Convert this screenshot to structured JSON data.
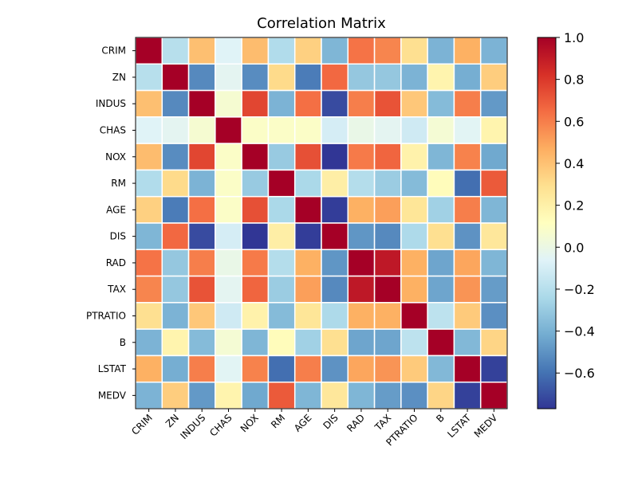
{
  "chart_data": {
    "type": "heatmap",
    "title": "Correlation Matrix",
    "labels": [
      "CRIM",
      "ZN",
      "INDUS",
      "CHAS",
      "NOX",
      "RM",
      "AGE",
      "DIS",
      "RAD",
      "TAX",
      "PTRATIO",
      "B",
      "LSTAT",
      "MEDV"
    ],
    "matrix": [
      [
        1.0,
        -0.2,
        0.41,
        -0.06,
        0.42,
        -0.22,
        0.35,
        -0.38,
        0.63,
        0.58,
        0.29,
        -0.39,
        0.46,
        -0.39
      ],
      [
        -0.2,
        1.0,
        -0.53,
        -0.04,
        -0.52,
        0.31,
        -0.57,
        0.66,
        -0.31,
        -0.31,
        -0.39,
        0.18,
        -0.41,
        0.36
      ],
      [
        0.41,
        -0.53,
        1.0,
        0.06,
        0.76,
        -0.39,
        0.64,
        -0.71,
        0.6,
        0.72,
        0.38,
        -0.36,
        0.6,
        -0.48
      ],
      [
        -0.06,
        -0.04,
        0.06,
        1.0,
        0.09,
        0.09,
        0.09,
        -0.1,
        -0.01,
        -0.04,
        -0.12,
        0.05,
        -0.05,
        0.18
      ],
      [
        0.42,
        -0.52,
        0.76,
        0.09,
        1.0,
        -0.3,
        0.73,
        -0.77,
        0.61,
        0.67,
        0.19,
        -0.38,
        0.59,
        -0.43
      ],
      [
        -0.22,
        0.31,
        -0.39,
        0.09,
        -0.3,
        1.0,
        -0.24,
        0.21,
        -0.21,
        -0.29,
        -0.36,
        0.13,
        -0.61,
        0.7
      ],
      [
        0.35,
        -0.57,
        0.64,
        0.09,
        0.73,
        -0.24,
        1.0,
        -0.75,
        0.46,
        0.51,
        0.26,
        -0.27,
        0.6,
        -0.38
      ],
      [
        -0.38,
        0.66,
        -0.71,
        -0.1,
        -0.77,
        0.21,
        -0.75,
        1.0,
        -0.49,
        -0.53,
        -0.23,
        0.29,
        -0.5,
        0.25
      ],
      [
        0.63,
        -0.31,
        0.6,
        -0.01,
        0.61,
        -0.21,
        0.46,
        -0.49,
        1.0,
        0.91,
        0.46,
        -0.44,
        0.49,
        -0.38
      ],
      [
        0.58,
        -0.31,
        0.72,
        -0.04,
        0.67,
        -0.29,
        0.51,
        -0.53,
        0.91,
        1.0,
        0.46,
        -0.44,
        0.54,
        -0.47
      ],
      [
        0.29,
        -0.39,
        0.38,
        -0.12,
        0.19,
        -0.36,
        0.26,
        -0.23,
        0.46,
        0.46,
        1.0,
        -0.18,
        0.37,
        -0.51
      ],
      [
        -0.39,
        0.18,
        -0.36,
        0.05,
        -0.38,
        0.13,
        -0.27,
        0.29,
        -0.44,
        -0.44,
        -0.18,
        1.0,
        -0.37,
        0.33
      ],
      [
        0.46,
        -0.41,
        0.6,
        -0.05,
        0.59,
        -0.61,
        0.6,
        -0.5,
        0.49,
        0.54,
        0.37,
        -0.37,
        1.0,
        -0.74
      ],
      [
        -0.39,
        0.36,
        -0.48,
        0.18,
        -0.43,
        0.7,
        -0.38,
        0.25,
        -0.38,
        -0.47,
        -0.51,
        0.33,
        -0.74,
        1.0
      ]
    ],
    "colormap": "RdYlBu_r",
    "vmin": -0.77,
    "vmax": 1.0,
    "colorbar_ticks": [
      1.0,
      0.8,
      0.6,
      0.4,
      0.2,
      0.0,
      -0.2,
      -0.4,
      -0.6
    ],
    "colorbar_tick_labels": [
      "1.0",
      "0.8",
      "0.6",
      "0.4",
      "0.2",
      "0.0",
      "−0.2",
      "−0.4",
      "−0.6"
    ],
    "grid": false
  }
}
